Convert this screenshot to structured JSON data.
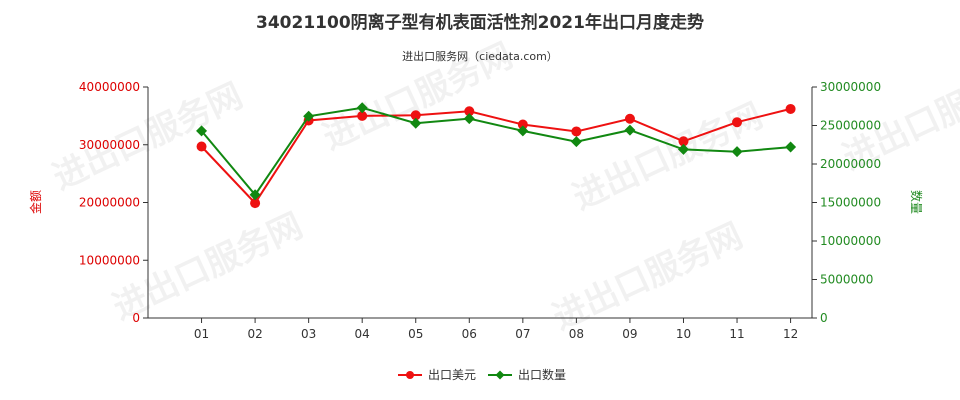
{
  "chart_data": {
    "type": "line",
    "title": "34021100阴离子型有机表面活性剂2021年出口月度走势",
    "subtitle": "进出口服务网（ciedata.com）",
    "categories": [
      "01",
      "02",
      "03",
      "04",
      "05",
      "06",
      "07",
      "08",
      "09",
      "10",
      "11",
      "12"
    ],
    "y_left": {
      "label": "金额",
      "ticks": [
        "0",
        "10000000",
        "20000000",
        "30000000",
        "40000000"
      ],
      "range": [
        0,
        40000000
      ],
      "color": "#dd0000"
    },
    "y_right": {
      "label": "数量",
      "ticks": [
        "0",
        "5000000",
        "10000000",
        "15000000",
        "20000000",
        "25000000",
        "30000000"
      ],
      "range": [
        0,
        30000000
      ],
      "color": "#228b22"
    },
    "series": [
      {
        "name": "出口美元",
        "axis": "left",
        "color": "#ee1111",
        "marker": "circle",
        "values": [
          29700000,
          19900000,
          34200000,
          35000000,
          35100000,
          35800000,
          33500000,
          32300000,
          34500000,
          30600000,
          33900000,
          36200000
        ]
      },
      {
        "name": "出口数量",
        "axis": "right",
        "color": "#118811",
        "marker": "diamond",
        "values": [
          24300000,
          16000000,
          26200000,
          27300000,
          25300000,
          25900000,
          24300000,
          22900000,
          24400000,
          21900000,
          21600000,
          22200000
        ]
      }
    ],
    "legend": "bottom-center",
    "grid": false
  },
  "watermark": "进出口服务网"
}
